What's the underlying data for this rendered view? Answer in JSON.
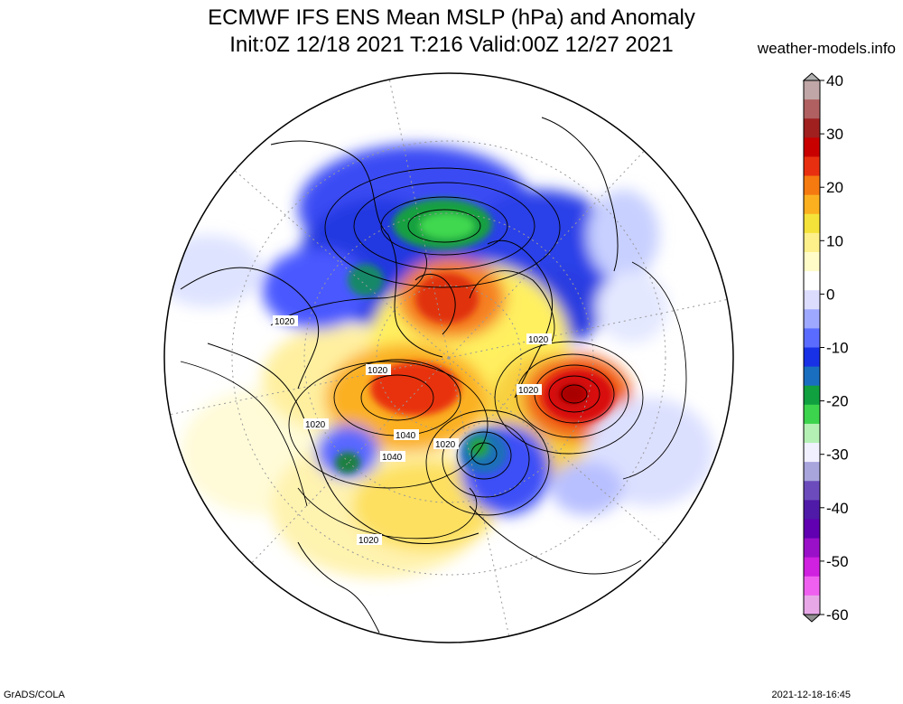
{
  "title_line1": "ECMWF IFS ENS Mean MSLP (hPa) and Anomaly",
  "title_line2": "Init:0Z 12/18 2021  T:216 Valid:00Z 12/27 2021",
  "site": "weather-models.info",
  "credit": "GrADS/COLA",
  "timestamp": "2021-12-18-16:45",
  "colorbar": {
    "ticks": [
      "40",
      "30",
      "20",
      "10",
      "0",
      "-10",
      "-20",
      "-30",
      "-40",
      "-50",
      "-60"
    ],
    "colors": [
      "#c0a6a6",
      "#b06060",
      "#a02020",
      "#c80000",
      "#e83010",
      "#f57a10",
      "#fbb020",
      "#f4e23a",
      "#fdf08a",
      "#fffcc8",
      "#ffffff",
      "#dcdcff",
      "#9fa8ff",
      "#5a6cff",
      "#1830e6",
      "#1a6ec0",
      "#10a040",
      "#3cd44c",
      "#b4f0b4",
      "#f0f0ff",
      "#a8a4dc",
      "#6c4cbc",
      "#501aa8",
      "#6000b0",
      "#9a10c8",
      "#d020e0",
      "#f060f0",
      "#e8a8e8"
    ]
  },
  "contour_labels": [
    {
      "text": "1020"
    },
    {
      "text": "1020"
    },
    {
      "text": "1020"
    },
    {
      "text": "1020"
    },
    {
      "text": "1020"
    },
    {
      "text": "1040"
    },
    {
      "text": "1040"
    },
    {
      "text": "1020"
    },
    {
      "text": "1020"
    }
  ]
}
